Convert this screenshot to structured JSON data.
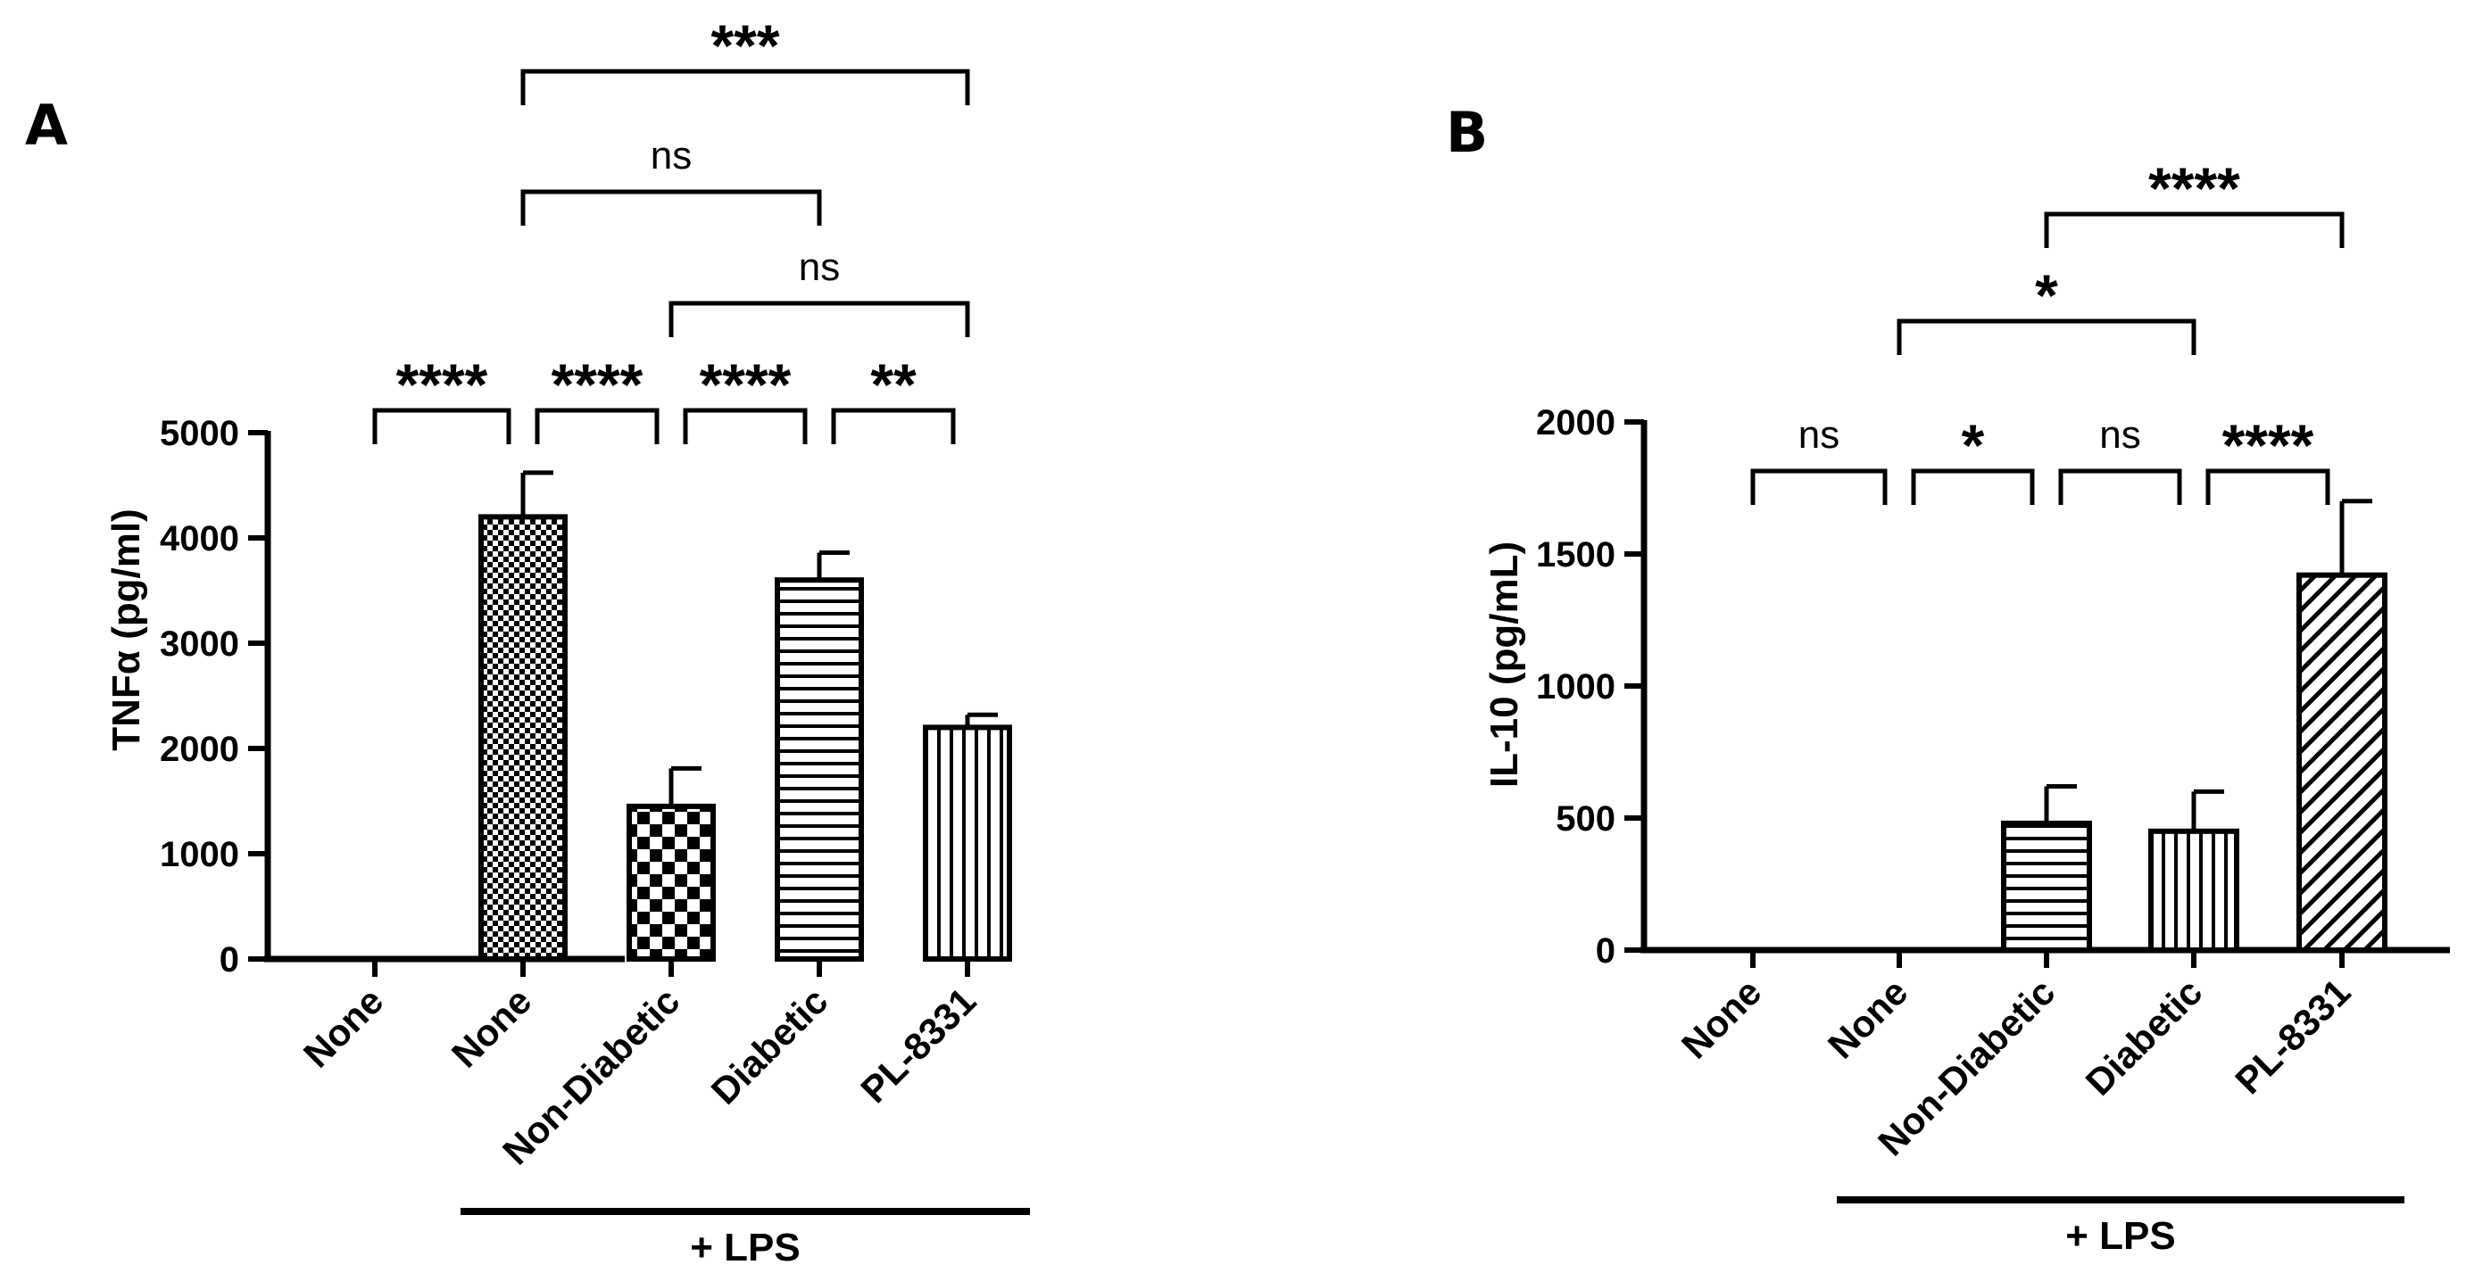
{
  "chart_data": [
    {
      "type": "bar",
      "panel": "A",
      "ylabel": "TNFα (pg/ml)",
      "ylim": [
        0,
        5000
      ],
      "yticks": [
        0,
        1000,
        2000,
        3000,
        4000,
        5000
      ],
      "categories": [
        "None",
        "None",
        "Non-Diabetic",
        "Diabetic",
        "PL-8331"
      ],
      "values": [
        0,
        4200,
        1450,
        3600,
        2200
      ],
      "errors": [
        0,
        420,
        360,
        260,
        120
      ],
      "patterns": [
        "none",
        "fine-check",
        "checker",
        "horizontal",
        "vertical"
      ],
      "group_label": "+ LPS",
      "group_span": [
        1,
        4
      ],
      "significance": [
        {
          "from": 0,
          "to": 1,
          "label": "****"
        },
        {
          "from": 1,
          "to": 2,
          "label": "****"
        },
        {
          "from": 2,
          "to": 3,
          "label": "****"
        },
        {
          "from": 3,
          "to": 4,
          "label": "**"
        },
        {
          "from": 2,
          "to": 4,
          "label": "ns"
        },
        {
          "from": 1,
          "to": 3,
          "label": "ns"
        },
        {
          "from": 1,
          "to": 4,
          "label": "***"
        }
      ]
    },
    {
      "type": "bar",
      "panel": "B",
      "ylabel": "IL-10 (pg/mL)",
      "ylim": [
        0,
        2000
      ],
      "yticks": [
        0,
        500,
        1000,
        1500,
        2000
      ],
      "categories": [
        "None",
        "None",
        "Non-Diabetic",
        "Diabetic",
        "PL-8331"
      ],
      "values": [
        0,
        0,
        480,
        450,
        1420
      ],
      "errors": [
        0,
        0,
        140,
        150,
        280
      ],
      "patterns": [
        "none",
        "none",
        "horizontal",
        "vertical",
        "diagonal"
      ],
      "group_label": "+ LPS",
      "group_span": [
        1,
        4
      ],
      "significance": [
        {
          "from": 0,
          "to": 1,
          "label": "ns"
        },
        {
          "from": 1,
          "to": 2,
          "label": "*"
        },
        {
          "from": 2,
          "to": 3,
          "label": "ns"
        },
        {
          "from": 3,
          "to": 4,
          "label": "****"
        },
        {
          "from": 1,
          "to": 3,
          "label": "*"
        },
        {
          "from": 2,
          "to": 4,
          "label": "****"
        }
      ]
    }
  ]
}
